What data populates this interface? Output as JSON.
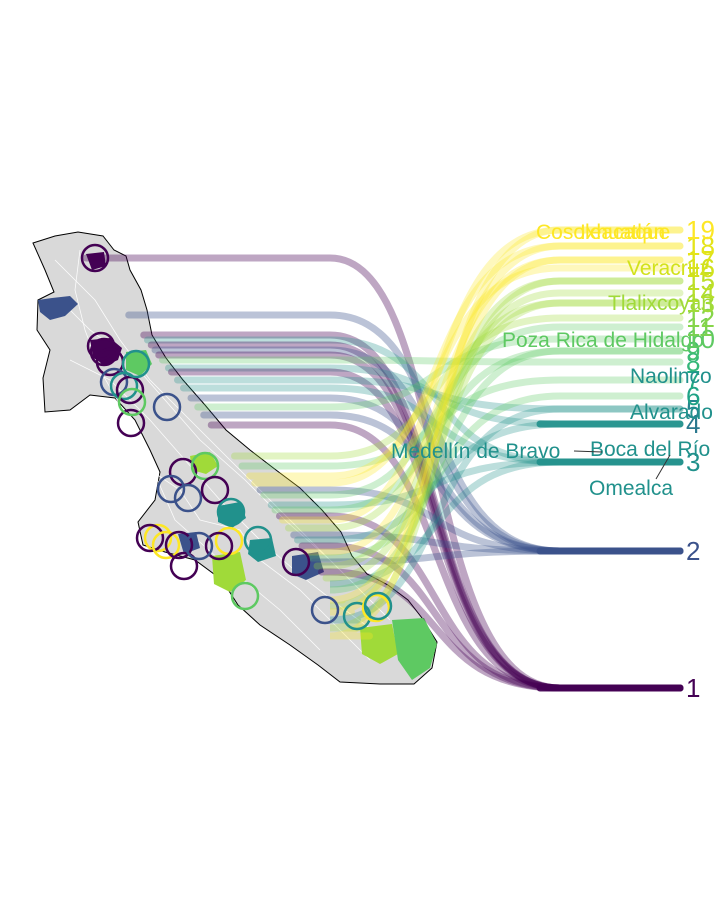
{
  "chart_data": {
    "type": "map-rank-bump",
    "palette": [
      "#440154",
      "#3b528b",
      "#21918c",
      "#5ec962",
      "#a0da39",
      "#fde725"
    ],
    "ranks": [
      {
        "rank": "1",
        "color": "#440154"
      },
      {
        "rank": "2",
        "color": "#3b528b"
      },
      {
        "rank": "3",
        "color": "#21918c"
      },
      {
        "rank": "4",
        "color": "#2a788e"
      },
      {
        "rank": "5",
        "color": "#25858e"
      },
      {
        "rank": "6",
        "color": "#20a386"
      },
      {
        "rank": "7",
        "color": "#22a884"
      },
      {
        "rank": "8",
        "color": "#35b779"
      },
      {
        "rank": "9",
        "color": "#44bf70"
      },
      {
        "rank": "10",
        "color": "#5ec962"
      },
      {
        "rank": "11",
        "color": "#7ad151"
      },
      {
        "rank": "12",
        "color": "#86d549"
      },
      {
        "rank": "13",
        "color": "#a0da39"
      },
      {
        "rank": "14",
        "color": "#b5de2b"
      },
      {
        "rank": "15",
        "color": "#bddf26"
      },
      {
        "rank": "16",
        "color": "#d2e21b"
      },
      {
        "rank": "17",
        "color": "#dde318"
      },
      {
        "rank": "18",
        "color": "#e5e419"
      },
      {
        "rank": "19",
        "color": "#fde725"
      }
    ],
    "municipality_labels": [
      {
        "name": "Cosoleacaque",
        "color": "#fde725"
      },
      {
        "name": "Ixhuatlán",
        "color": "#fde725"
      },
      {
        "name": "Veracruz",
        "color": "#d2e21b"
      },
      {
        "name": "Tlalixcoyan",
        "color": "#a0da39"
      },
      {
        "name": "Poza Rica de Hidalgo",
        "color": "#5ec962"
      },
      {
        "name": "Naolinco",
        "color": "#21918c"
      },
      {
        "name": "Alvarado",
        "color": "#21918c"
      },
      {
        "name": "Medellín de Bravo",
        "color": "#21918c"
      },
      {
        "name": "Boca del Río",
        "color": "#21918c"
      },
      {
        "name": "Omealca",
        "color": "#21918c"
      }
    ]
  }
}
